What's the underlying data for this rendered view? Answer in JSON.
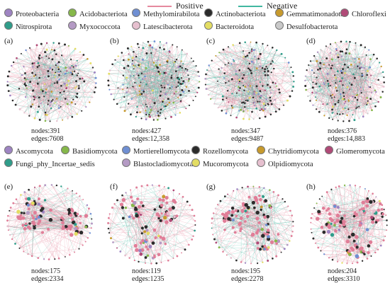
{
  "edge_legend": {
    "positive": {
      "label": "Positive",
      "color": "#e5899e"
    },
    "negative": {
      "label": "Negative",
      "color": "#42b7a0"
    }
  },
  "bacteria_legend": [
    {
      "name": "Proteobacteria",
      "color": "#9e84c2"
    },
    {
      "name": "Acidobacteriota",
      "color": "#86b84a"
    },
    {
      "name": "Methylomirabilota",
      "color": "#6f8fd3"
    },
    {
      "name": "Actinobacteriota",
      "color": "#2b2b2b"
    },
    {
      "name": "Gemmatimonadota",
      "color": "#c79a2d"
    },
    {
      "name": "Chloroflexi",
      "color": "#b04a77"
    },
    {
      "name": "Nitrospirota",
      "color": "#2f9d8a"
    },
    {
      "name": "Myxococcota",
      "color": "#b49ac4"
    },
    {
      "name": "Latescibacterota",
      "color": "#e6c0cf"
    },
    {
      "name": "Bacteroidota",
      "color": "#e3dd63"
    },
    {
      "name": "Desulfobacterota",
      "color": "#c9c9c9"
    }
  ],
  "fungi_legend": [
    {
      "name": "Ascomycota",
      "color": "#9e84c2"
    },
    {
      "name": "Basidiomycota",
      "color": "#86b84a"
    },
    {
      "name": "Mortierellomycota",
      "color": "#6f8fd3"
    },
    {
      "name": "Rozellomycota",
      "color": "#2b2b2b"
    },
    {
      "name": "Chytridiomycota",
      "color": "#c79a2d"
    },
    {
      "name": "Glomeromycota",
      "color": "#b04a77"
    },
    {
      "name": "Fungi_phy_Incertae_sedis",
      "color": "#2f9d8a"
    },
    {
      "name": "Blastocladiomycota",
      "color": "#b49ac4"
    },
    {
      "name": "Mucoromycota",
      "color": "#e3dd63"
    },
    {
      "name": "Olpidiomycota",
      "color": "#e6c0cf"
    }
  ],
  "panels": [
    {
      "label": "(a)",
      "nodes": "nodes:391",
      "edges": "edges:7608"
    },
    {
      "label": "(b)",
      "nodes": "nodes:427",
      "edges": "edges:12,358"
    },
    {
      "label": "(c)",
      "nodes": "nodes:347",
      "edges": "edges:9487"
    },
    {
      "label": "(d)",
      "nodes": "nodes:376",
      "edges": "edges:14,883"
    },
    {
      "label": "(e)",
      "nodes": "nodes:175",
      "edges": "edges:2334"
    },
    {
      "label": "(f)",
      "nodes": "nodes:119",
      "edges": "edges:1235"
    },
    {
      "label": "(g)",
      "nodes": "nodes:195",
      "edges": "edges:2278"
    },
    {
      "label": "(h)",
      "nodes": "nodes:204",
      "edges": "edges:3310"
    }
  ]
}
